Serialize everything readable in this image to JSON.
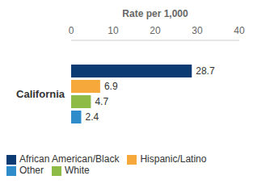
{
  "chart_data": {
    "type": "bar",
    "orientation": "horizontal",
    "xlabel": "Rate per 1,000",
    "categories": [
      "California"
    ],
    "series": [
      {
        "name": "African American/Black",
        "color": "#0c3a72",
        "values": [
          28.7
        ]
      },
      {
        "name": "Hispanic/Latino",
        "color": "#f6a83b",
        "values": [
          6.9
        ]
      },
      {
        "name": "White",
        "color": "#8dbb45",
        "values": [
          4.7
        ]
      },
      {
        "name": "Other",
        "color": "#2f8cca",
        "values": [
          2.4
        ]
      }
    ],
    "xlim": [
      0,
      40
    ],
    "xticks": [
      0,
      10,
      20,
      30,
      40
    ],
    "data_labels": true,
    "grid": false,
    "legend": "bottom-left"
  }
}
